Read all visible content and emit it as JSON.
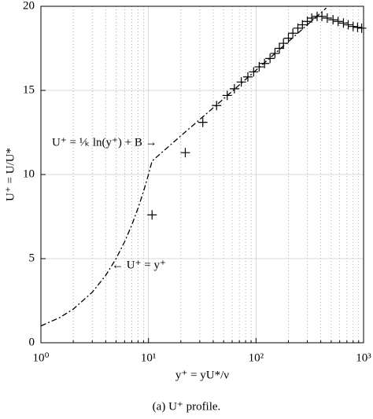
{
  "chart_data": {
    "type": "line",
    "xlabel": "y⁺ = yU*/ν",
    "ylabel": "U⁺ = U/U*",
    "caption": "(a) U⁺ profile.",
    "xscale": "log",
    "xlim": [
      1,
      1000
    ],
    "xticks": [
      {
        "value": 1,
        "label": "10⁰"
      },
      {
        "value": 10,
        "label": "10¹"
      },
      {
        "value": 100,
        "label": "10²"
      },
      {
        "value": 1000,
        "label": "10³"
      }
    ],
    "xminorticks": [
      2,
      3,
      4,
      5,
      6,
      7,
      8,
      9,
      20,
      30,
      40,
      50,
      60,
      70,
      80,
      90,
      200,
      300,
      400,
      500,
      600,
      700,
      800,
      900
    ],
    "ylim": [
      0,
      20
    ],
    "yticks": [
      0,
      5,
      10,
      15,
      20
    ],
    "grid": true,
    "annotations": [
      "U⁺ = ¹⁄ₖ ln(y⁺) + B →",
      "← U⁺ = y⁺"
    ],
    "series": [
      {
        "style": "dashdot",
        "color": "#000000",
        "x": [
          1,
          1.5,
          2,
          3,
          4,
          5,
          6,
          7,
          8,
          9,
          10,
          10.8,
          20,
          50,
          100,
          200,
          450
        ],
        "values": [
          1,
          1.5,
          2,
          3,
          4,
          5,
          6,
          7,
          8,
          9,
          10,
          10.8,
          12.3,
          14.5,
          16.2,
          17.9,
          19.9
        ]
      },
      {
        "style": "plus",
        "color": "#000000",
        "x": [
          10.8,
          22,
          32,
          43,
          54,
          63,
          73,
          84,
          95,
          107,
          120,
          135,
          150,
          165,
          180,
          200,
          220,
          245,
          270,
          300,
          330,
          370,
          410,
          460,
          520,
          580,
          650,
          720,
          800,
          880,
          960
        ],
        "values": [
          7.6,
          11.3,
          13.1,
          14.1,
          14.7,
          15.1,
          15.5,
          15.8,
          16.1,
          16.4,
          16.6,
          16.9,
          17.2,
          17.5,
          17.8,
          18.1,
          18.4,
          18.7,
          18.9,
          19.1,
          19.3,
          19.4,
          19.4,
          19.3,
          19.2,
          19.1,
          19.0,
          18.9,
          18.8,
          18.75,
          18.7
        ]
      }
    ]
  }
}
